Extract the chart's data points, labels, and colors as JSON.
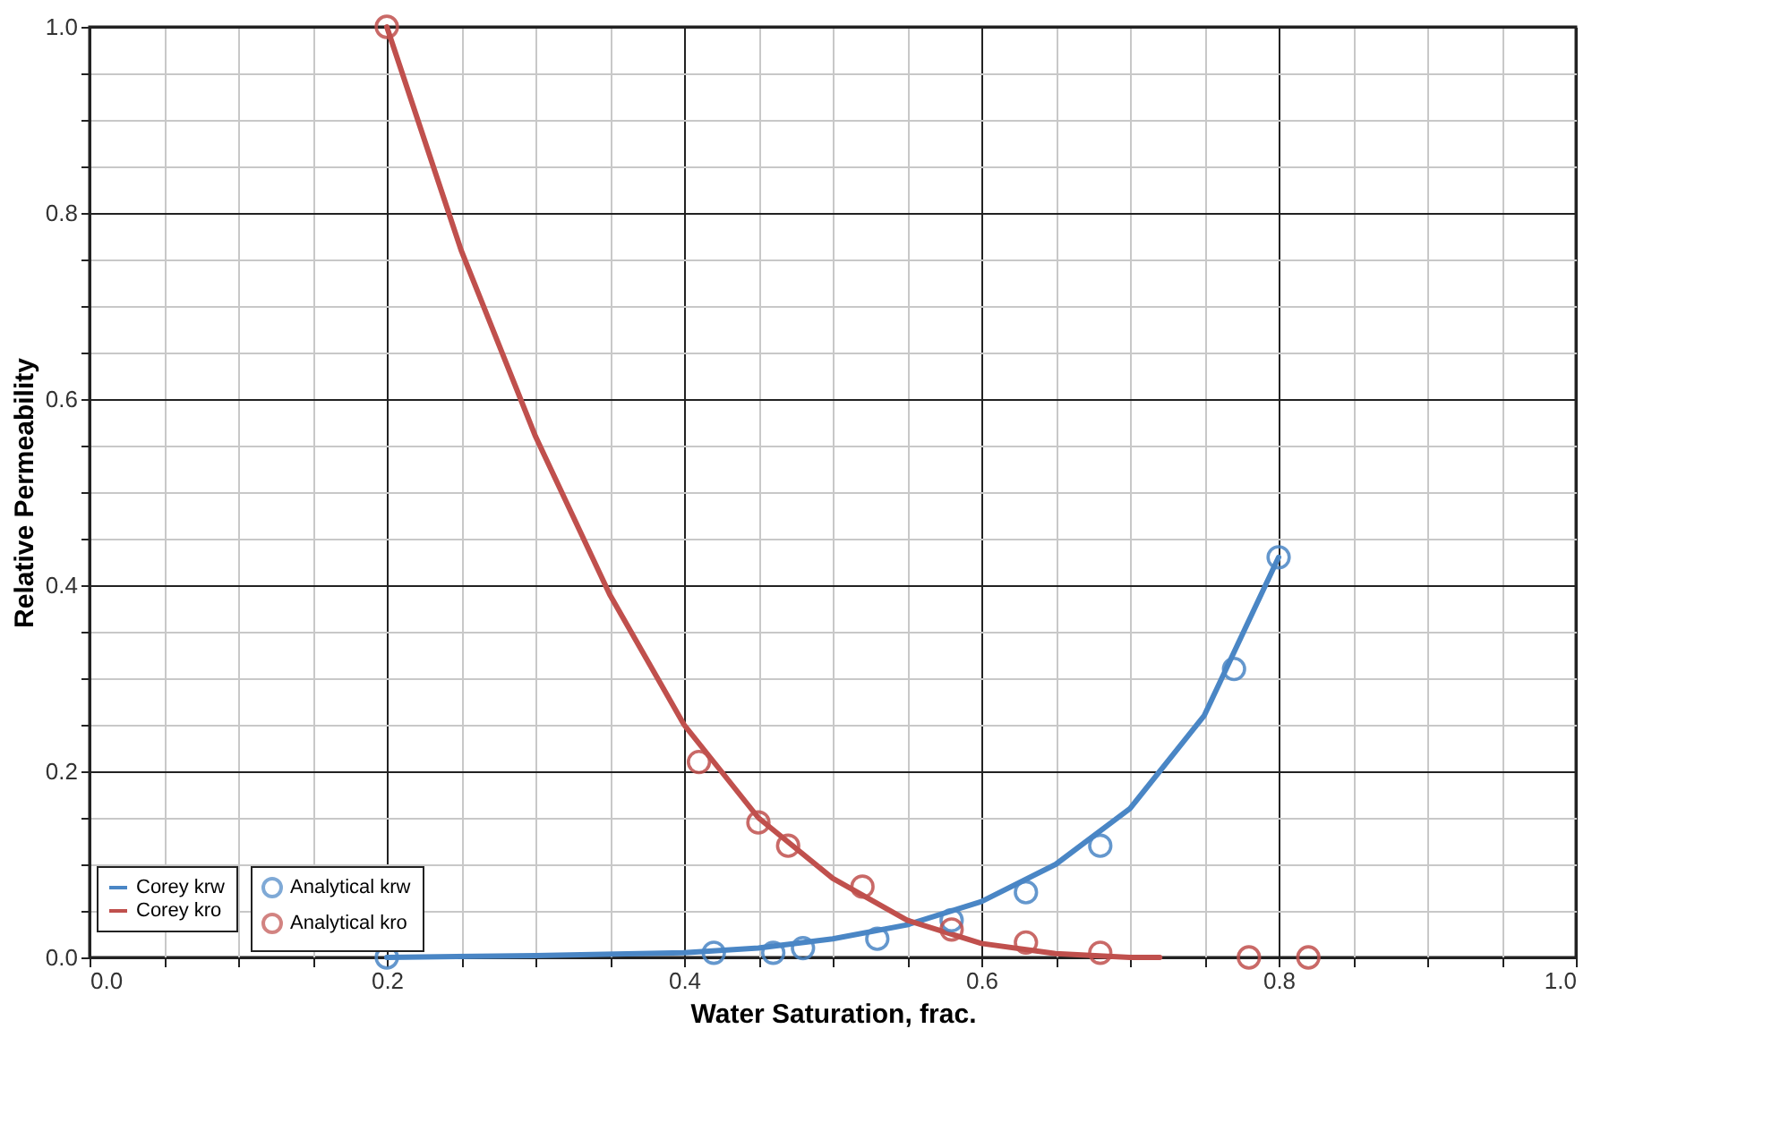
{
  "chart_data": {
    "type": "scatter",
    "xlabel": "Water Saturation, frac.",
    "ylabel": "Relative Permeability",
    "xlim": [
      0,
      1
    ],
    "ylim": [
      0,
      1
    ],
    "xticks": [
      {
        "value": 0,
        "label": "0.0"
      },
      {
        "value": 0.05,
        "label": null
      },
      {
        "value": 0.1,
        "label": null
      },
      {
        "value": 0.15,
        "label": null
      },
      {
        "value": 0.2,
        "label": "0.2"
      },
      {
        "value": 0.25,
        "label": null
      },
      {
        "value": 0.3,
        "label": null
      },
      {
        "value": 0.35,
        "label": null
      },
      {
        "value": 0.4,
        "label": "0.4"
      },
      {
        "value": 0.45,
        "label": null
      },
      {
        "value": 0.5,
        "label": null
      },
      {
        "value": 0.55,
        "label": null
      },
      {
        "value": 0.6,
        "label": "0.6"
      },
      {
        "value": 0.65,
        "label": null
      },
      {
        "value": 0.7,
        "label": null
      },
      {
        "value": 0.75,
        "label": null
      },
      {
        "value": 0.8,
        "label": "0.8"
      },
      {
        "value": 0.85,
        "label": null
      },
      {
        "value": 0.9,
        "label": null
      },
      {
        "value": 0.95,
        "label": null
      },
      {
        "value": 1,
        "label": "1.0"
      }
    ],
    "yticks": [
      {
        "value": 0,
        "label": "0.0"
      },
      {
        "value": 0.05,
        "label": null
      },
      {
        "value": 0.1,
        "label": null
      },
      {
        "value": 0.15,
        "label": null
      },
      {
        "value": 0.2,
        "label": "0.2"
      },
      {
        "value": 0.25,
        "label": null
      },
      {
        "value": 0.3,
        "label": null
      },
      {
        "value": 0.35,
        "label": null
      },
      {
        "value": 0.4,
        "label": "0.4"
      },
      {
        "value": 0.45,
        "label": null
      },
      {
        "value": 0.5,
        "label": null
      },
      {
        "value": 0.55,
        "label": null
      },
      {
        "value": 0.6,
        "label": "0.6"
      },
      {
        "value": 0.65,
        "label": null
      },
      {
        "value": 0.7,
        "label": null
      },
      {
        "value": 0.75,
        "label": null
      },
      {
        "value": 0.8,
        "label": "0.8"
      },
      {
        "value": 0.85,
        "label": null
      },
      {
        "value": 0.9,
        "label": null
      },
      {
        "value": 0.95,
        "label": null
      },
      {
        "value": 1,
        "label": "1.0"
      }
    ],
    "grid": true,
    "legend": "bottom left",
    "series": [
      {
        "name": "Analytical krw",
        "marker": "circle",
        "color": "#4a86c5",
        "x": [
          0.2,
          0.42,
          0.46,
          0.48,
          0.53,
          0.58,
          0.63,
          0.68,
          0.77,
          0.8
        ],
        "values": [
          0.0,
          0.005,
          0.005,
          0.01,
          0.02,
          0.04,
          0.07,
          0.12,
          0.31,
          0.43
        ]
      },
      {
        "name": "Analytical kro",
        "marker": "circle",
        "color": "#c0504d",
        "x": [
          0.2,
          0.41,
          0.45,
          0.47,
          0.52,
          0.58,
          0.63,
          0.68,
          0.78,
          0.82
        ],
        "values": [
          1.0,
          0.21,
          0.145,
          0.12,
          0.076,
          0.03,
          0.016,
          0.005,
          0.0,
          0.0
        ]
      },
      {
        "name": "Corey krw",
        "type": "line",
        "line_style": "solid",
        "color": "#4a86c5",
        "x": [
          0.2,
          0.3,
          0.4,
          0.45,
          0.5,
          0.55,
          0.6,
          0.65,
          0.7,
          0.75,
          0.8
        ],
        "values": [
          0.0,
          0.002,
          0.005,
          0.01,
          0.02,
          0.035,
          0.06,
          0.1,
          0.16,
          0.26,
          0.43
        ]
      },
      {
        "name": "Corey kro",
        "type": "line",
        "line_style": "solid",
        "color": "#c0504d",
        "x": [
          0.2,
          0.25,
          0.3,
          0.35,
          0.4,
          0.45,
          0.5,
          0.55,
          0.6,
          0.65,
          0.7,
          0.72
        ],
        "values": [
          1.0,
          0.76,
          0.56,
          0.39,
          0.25,
          0.15,
          0.085,
          0.04,
          0.015,
          0.004,
          0.0,
          0.0
        ]
      }
    ]
  }
}
